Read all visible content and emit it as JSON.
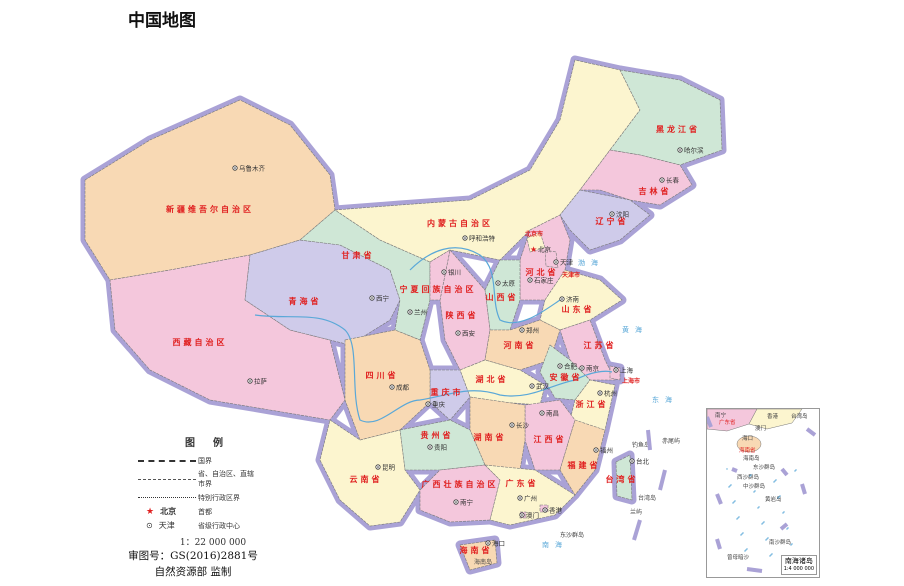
{
  "title": "中国地图",
  "legend": {
    "heading": "图例",
    "items": [
      {
        "symbol": "national-border",
        "label": "国界"
      },
      {
        "symbol": "province-border",
        "label": "省、自治区、直辖市界"
      },
      {
        "symbol": "sar-border",
        "label": "特别行政区界"
      },
      {
        "symbol": "capital-star",
        "sample": "北京",
        "label": "首都"
      },
      {
        "symbol": "provincial-center",
        "sample": "天津",
        "label": "省级行政中心"
      }
    ],
    "scale": "1：22 000 000"
  },
  "footer": {
    "approval": "审图号：GS(2016)2881号",
    "publisher": "自然资源部 监制"
  },
  "colors": {
    "pink": "#f4c7dc",
    "peach": "#f8d9b4",
    "yellow": "#fcf5cf",
    "green": "#cfe7d6",
    "lavender": "#cfcbea",
    "border_halo": "#aaa2d6",
    "label_red": "#e02020",
    "water": "#5aa8d8"
  },
  "provinces": [
    {
      "name": "新疆维吾尔自治区",
      "capital": "乌鲁木齐",
      "color": "peach"
    },
    {
      "name": "西藏自治区",
      "capital": "拉萨",
      "color": "pink"
    },
    {
      "name": "青海省",
      "capital": "西宁",
      "color": "lavender"
    },
    {
      "name": "甘肃省",
      "capital": "兰州",
      "color": "green"
    },
    {
      "name": "内蒙古自治区",
      "capital": "呼和浩特",
      "color": "yellow"
    },
    {
      "name": "黑龙江省",
      "capital": "哈尔滨",
      "color": "green"
    },
    {
      "name": "吉林省",
      "capital": "长春",
      "color": "pink"
    },
    {
      "name": "辽宁省",
      "capital": "沈阳",
      "color": "lavender"
    },
    {
      "name": "河北省",
      "capital": "石家庄",
      "color": "pink"
    },
    {
      "name": "山西省",
      "capital": "太原",
      "color": "green"
    },
    {
      "name": "陕西省",
      "capital": "西安",
      "color": "pink"
    },
    {
      "name": "宁夏回族自治区",
      "capital": "银川",
      "color": "pink"
    },
    {
      "name": "山东省",
      "capital": "济南",
      "color": "yellow"
    },
    {
      "name": "河南省",
      "capital": "郑州",
      "color": "peach"
    },
    {
      "name": "江苏省",
      "capital": "南京",
      "color": "pink"
    },
    {
      "name": "安徽省",
      "capital": "合肥",
      "color": "green"
    },
    {
      "name": "湖北省",
      "capital": "武汉",
      "color": "yellow"
    },
    {
      "name": "重庆市",
      "capital": "重庆",
      "color": "lavender"
    },
    {
      "name": "四川省",
      "capital": "成都",
      "color": "peach"
    },
    {
      "name": "浙江省",
      "capital": "杭州",
      "color": "yellow"
    },
    {
      "name": "江西省",
      "capital": "南昌",
      "color": "pink"
    },
    {
      "name": "湖南省",
      "capital": "长沙",
      "color": "peach"
    },
    {
      "name": "贵州省",
      "capital": "贵阳",
      "color": "green"
    },
    {
      "name": "福建省",
      "capital": "福州",
      "color": "peach"
    },
    {
      "name": "云南省",
      "capital": "昆明",
      "color": "yellow"
    },
    {
      "name": "广西壮族自治区",
      "capital": "南宁",
      "color": "pink"
    },
    {
      "name": "广东省",
      "capital": "广州",
      "color": "yellow"
    },
    {
      "name": "海南省",
      "capital": "海口",
      "color": "peach"
    },
    {
      "name": "台湾省",
      "capital": "台北",
      "color": "green"
    },
    {
      "name": "北京市",
      "capital": "北京",
      "color": "yellow"
    },
    {
      "name": "天津市",
      "capital": "天津",
      "color": "pink"
    },
    {
      "name": "上海市",
      "capital": "上海",
      "color": "pink"
    },
    {
      "name": "香港",
      "capital": "香港",
      "color": "pink"
    },
    {
      "name": "澳门",
      "capital": "澳门",
      "color": "pink"
    }
  ],
  "seas": [
    "渤海",
    "黄海",
    "东海",
    "南海"
  ],
  "islands": [
    "钓鱼岛",
    "赤尾屿",
    "台湾岛",
    "东沙群岛",
    "海南岛",
    "兰屿"
  ],
  "inset": {
    "title": "南海诸岛",
    "scale": "1:4 000 000",
    "places": [
      "南宁",
      "广东省",
      "香港",
      "澳门",
      "海口",
      "海南省",
      "海南岛",
      "东沙群岛",
      "西沙群岛",
      "中沙群岛",
      "黄岩岛",
      "南沙群岛",
      "曾母暗沙",
      "台湾岛"
    ]
  }
}
